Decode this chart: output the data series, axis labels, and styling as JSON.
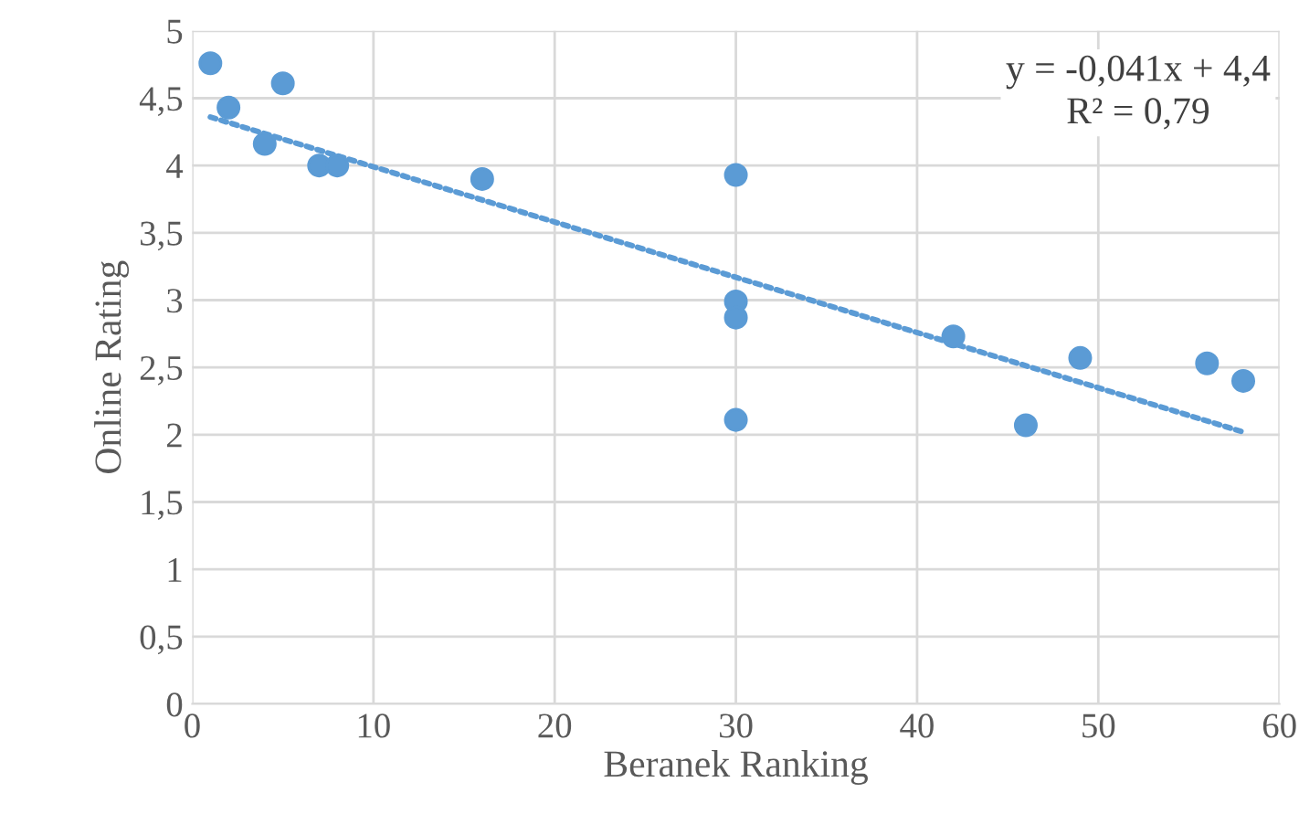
{
  "chart_data": {
    "type": "scatter",
    "xlabel": "Beranek Ranking",
    "ylabel": "Online Rating",
    "series": [
      {
        "color": "#5b9bd5",
        "marker": "circle",
        "x": [
          1,
          2,
          4,
          5,
          7,
          8,
          16,
          30,
          30,
          30,
          30,
          42,
          46,
          49,
          56,
          58
        ],
        "values": [
          4.76,
          4.43,
          4.16,
          4.61,
          4.0,
          4.0,
          3.9,
          3.93,
          2.99,
          2.87,
          2.11,
          2.73,
          2.07,
          2.57,
          2.53,
          2.4
        ]
      },
      {
        "type": "line",
        "color": "#5b9bd5",
        "line_style": "dotted",
        "marker": "none",
        "x": [
          1,
          58
        ],
        "values": [
          4.36,
          2.02
        ]
      }
    ],
    "annotations": [
      "y = -0,041x + 4,4",
      "R² = 0,79"
    ],
    "xlim": [
      0,
      60
    ],
    "xticks": [
      0,
      10,
      20,
      30,
      40,
      50,
      60
    ],
    "ylim": [
      0,
      5
    ],
    "yticks": [
      0,
      {
        "value": 0.5,
        "label": "0,5"
      },
      1,
      {
        "value": 1.5,
        "label": "1,5"
      },
      2,
      {
        "value": 2.5,
        "label": "2,5"
      },
      3,
      {
        "value": 3.5,
        "label": "3,5"
      },
      4,
      {
        "value": 4.5,
        "label": "4,5"
      },
      5
    ],
    "grid": true,
    "legend": false
  }
}
